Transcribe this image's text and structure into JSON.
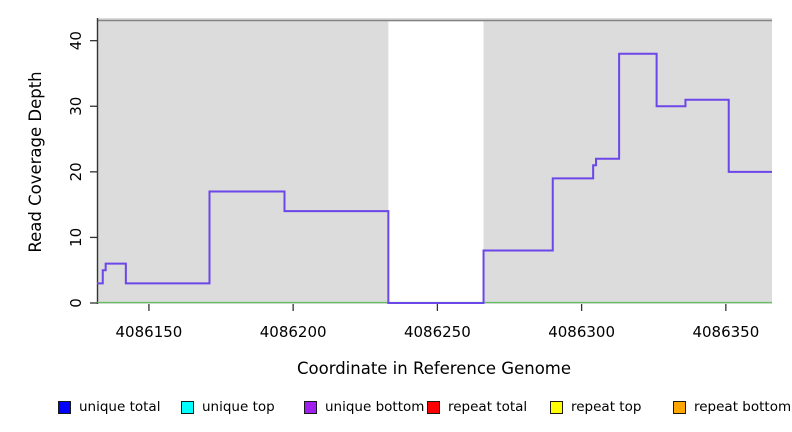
{
  "chart_data": {
    "type": "line",
    "subtype": "step-coverage",
    "title": "",
    "xlabel": "Coordinate in Reference Genome",
    "ylabel": "Read Coverage Depth",
    "xlim": [
      4086132,
      4086366
    ],
    "ylim": [
      0,
      43
    ],
    "x_ticks": [
      4086150,
      4086200,
      4086250,
      4086300,
      4086350
    ],
    "y_ticks": [
      0,
      10,
      20,
      30,
      40
    ],
    "grid": false,
    "plot_background": "#dcdcdc",
    "top_border_color": "#838383",
    "axis_color": "#333333",
    "gap_region": {
      "start": 4086233,
      "end": 4086266,
      "color": "#ffffff"
    },
    "baseline": {
      "y": 0,
      "color": "#60c060"
    },
    "series": [
      {
        "name": "unique bottom coverage",
        "color": "#6b46e8",
        "steps": [
          {
            "x": 4086132,
            "y": 3
          },
          {
            "x": 4086134,
            "y": 5
          },
          {
            "x": 4086135,
            "y": 6
          },
          {
            "x": 4086142,
            "y": 3
          },
          {
            "x": 4086171,
            "y": 17
          },
          {
            "x": 4086197,
            "y": 14
          },
          {
            "x": 4086233,
            "y": 0
          },
          {
            "x": 4086266,
            "y": 8
          },
          {
            "x": 4086290,
            "y": 19
          },
          {
            "x": 4086304,
            "y": 21
          },
          {
            "x": 4086305,
            "y": 22
          },
          {
            "x": 4086313,
            "y": 38
          },
          {
            "x": 4086326,
            "y": 30
          },
          {
            "x": 4086336,
            "y": 31
          },
          {
            "x": 4086351,
            "y": 20
          },
          {
            "x": 4086366,
            "y": 20
          }
        ]
      }
    ],
    "legend": {
      "position": "bottom",
      "entries": [
        {
          "label": "unique total",
          "color": "#0000ff"
        },
        {
          "label": "unique top",
          "color": "#00ffff"
        },
        {
          "label": "unique bottom",
          "color": "#a020f0"
        },
        {
          "label": "repeat total",
          "color": "#ff0000"
        },
        {
          "label": "repeat top",
          "color": "#ffff00"
        },
        {
          "label": "repeat bottom",
          "color": "#ffa500"
        }
      ]
    }
  }
}
